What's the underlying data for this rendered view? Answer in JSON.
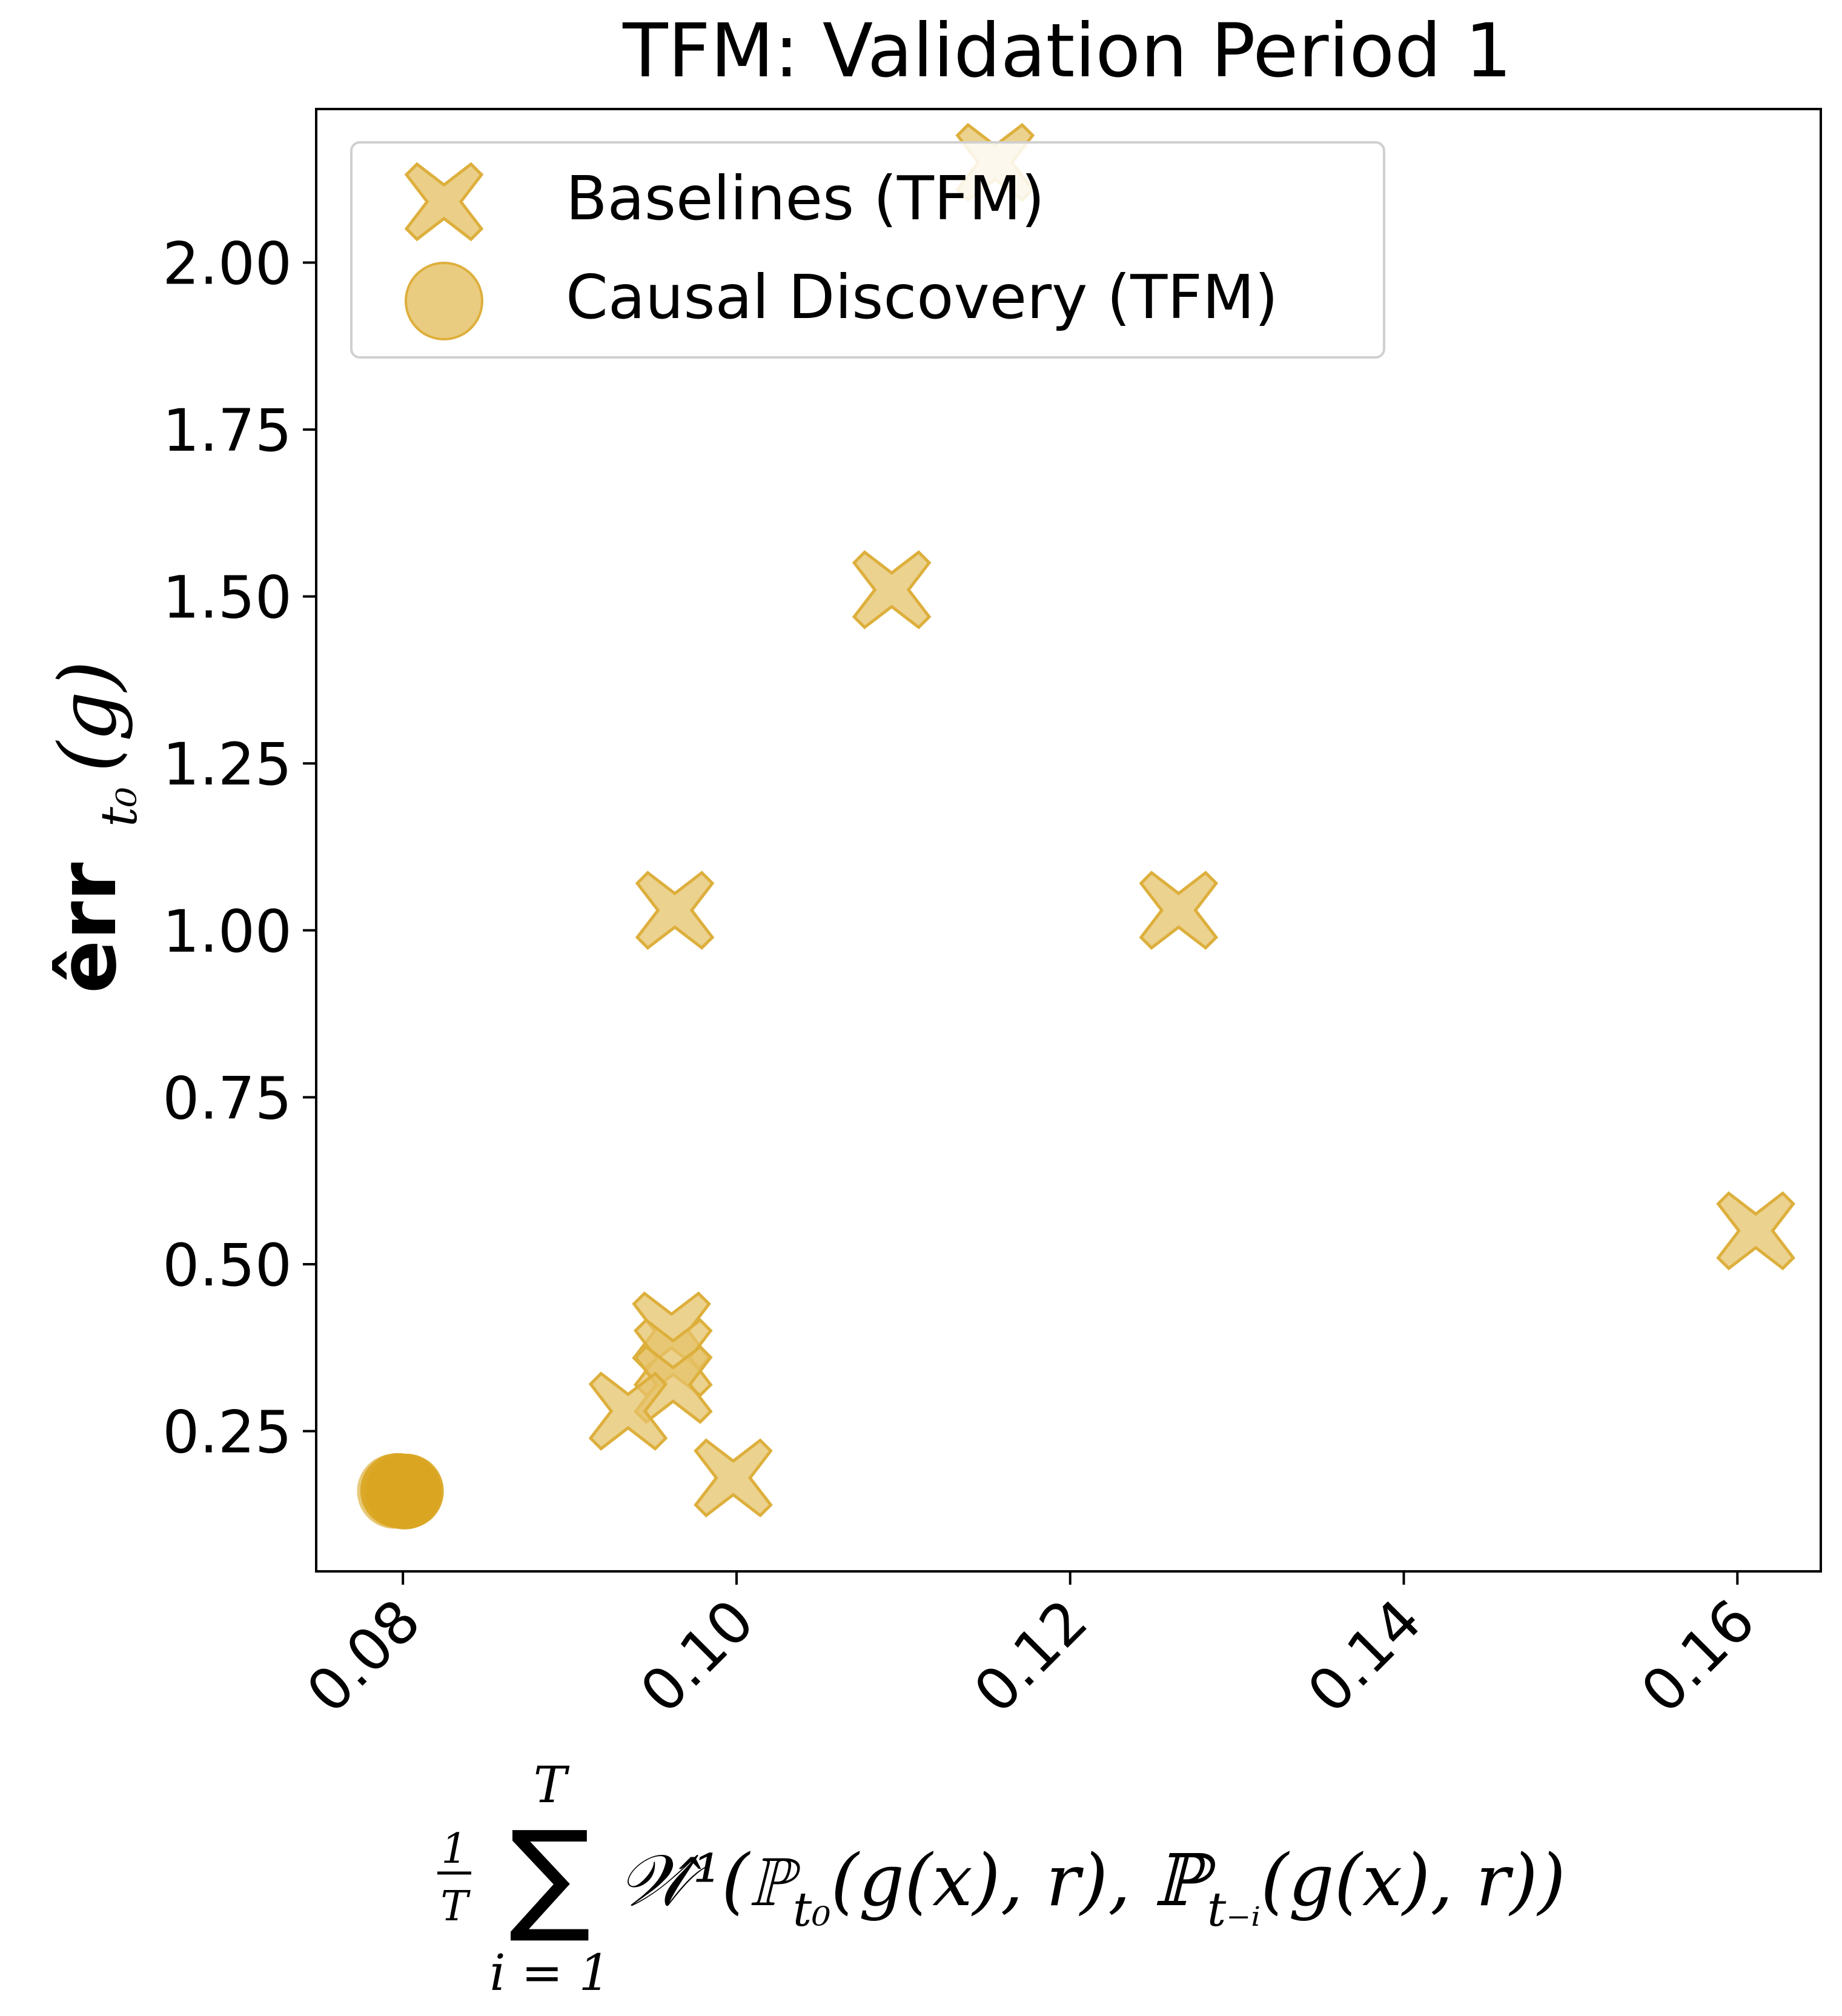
{
  "chart_data": {
    "type": "scatter",
    "title": "TFM: Validation Period 1",
    "xlabel": {
      "frac_num": "1",
      "frac_den": "T",
      "sum_sym": "∑",
      "sum_top": "T",
      "sum_bottom": "i = 1",
      "body": "𝒲̂¹(ℙ",
      "sub1": "t₀",
      "mid": "(g(x), r), ℙ",
      "sub2": "t₋ᵢ",
      "tail": "(g(x), r))"
    },
    "ylabel": {
      "main": "êrr",
      "sub": "t₀",
      "tail": "(g)"
    },
    "xlim": [
      0.0748,
      0.165
    ],
    "ylim": [
      0.04,
      2.23
    ],
    "xticks": [
      0.08,
      0.1,
      0.12,
      0.14,
      0.16
    ],
    "xtick_labels": [
      "0.08",
      "0.10",
      "0.12",
      "0.14",
      "0.16"
    ],
    "yticks": [
      0.25,
      0.5,
      0.75,
      1.0,
      1.25,
      1.5,
      1.75,
      2.0
    ],
    "ytick_labels": [
      "0.25",
      "0.50",
      "0.75",
      "1.00",
      "1.25",
      "1.50",
      "1.75",
      "2.00"
    ],
    "grid": false,
    "legend_position": "top-left",
    "series": [
      {
        "name": "Baselines (TFM)",
        "marker": "X",
        "color": "#E6C36A",
        "edge_color": "#DDAF3C",
        "points": [
          {
            "x": 0.1155,
            "y": 2.15
          },
          {
            "x": 0.1093,
            "y": 1.51
          },
          {
            "x": 0.0963,
            "y": 1.03
          },
          {
            "x": 0.1265,
            "y": 1.03
          },
          {
            "x": 0.1611,
            "y": 0.55
          },
          {
            "x": 0.0961,
            "y": 0.4
          },
          {
            "x": 0.0962,
            "y": 0.36
          },
          {
            "x": 0.0962,
            "y": 0.32
          },
          {
            "x": 0.0935,
            "y": 0.28
          },
          {
            "x": 0.0998,
            "y": 0.18
          }
        ]
      },
      {
        "name": "Causal Discovery (TFM)",
        "marker": "o",
        "color": "#E6C36A",
        "dense_color": "#D9A521",
        "points": [
          {
            "x": 0.0795,
            "y": 0.16
          },
          {
            "x": 0.0798,
            "y": 0.16
          },
          {
            "x": 0.08,
            "y": 0.16
          },
          {
            "x": 0.0802,
            "y": 0.16
          },
          {
            "x": 0.0797,
            "y": 0.161
          },
          {
            "x": 0.0801,
            "y": 0.159
          }
        ]
      }
    ]
  }
}
